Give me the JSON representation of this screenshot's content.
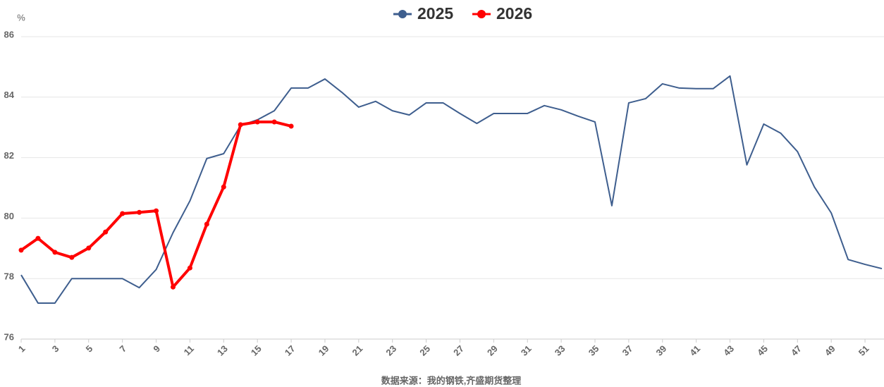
{
  "chart_data": {
    "type": "line",
    "unit": "%",
    "source": "数据来源：我的钢铁,齐盛期货整理",
    "x": [
      1,
      2,
      3,
      4,
      5,
      6,
      7,
      8,
      9,
      10,
      11,
      12,
      13,
      14,
      15,
      16,
      17,
      18,
      19,
      20,
      21,
      22,
      23,
      24,
      25,
      26,
      27,
      28,
      29,
      30,
      31,
      32,
      33,
      34,
      35,
      36,
      37,
      38,
      39,
      40,
      41,
      42,
      43,
      44,
      45,
      46,
      47,
      48,
      49,
      50,
      51,
      52
    ],
    "xlim": [
      1,
      52
    ],
    "xticks": [
      1,
      3,
      5,
      7,
      9,
      11,
      13,
      15,
      17,
      19,
      21,
      23,
      25,
      27,
      29,
      31,
      33,
      35,
      37,
      39,
      41,
      43,
      45,
      47,
      49,
      51
    ],
    "ylim": [
      76,
      86
    ],
    "yticks": [
      76,
      78,
      80,
      82,
      84,
      86
    ],
    "grid": true,
    "legend": "top",
    "series": [
      {
        "name": "2025",
        "color": "#3e5e8e",
        "values": [
          78.12,
          77.19,
          77.19,
          78.0,
          78.0,
          78.0,
          78.0,
          77.7,
          78.3,
          79.52,
          80.57,
          81.97,
          82.13,
          83.06,
          83.25,
          83.55,
          84.3,
          84.3,
          84.6,
          84.16,
          83.67,
          83.86,
          83.55,
          83.41,
          83.81,
          83.81,
          83.46,
          83.13,
          83.46,
          83.46,
          83.46,
          83.72,
          83.58,
          83.37,
          83.18,
          80.41,
          83.81,
          83.95,
          84.44,
          84.3,
          84.28,
          84.28,
          84.7,
          81.76,
          83.11,
          82.81,
          82.2,
          81.03,
          80.17,
          78.63,
          78.47,
          78.33
        ]
      },
      {
        "name": "2026",
        "color": "#ff0000",
        "values": [
          78.94,
          79.33,
          78.87,
          78.7,
          79.01,
          79.54,
          80.15,
          80.19,
          80.24,
          77.72,
          78.35,
          79.8,
          81.03,
          83.09,
          83.18,
          83.18,
          83.04,
          null,
          null,
          null,
          null,
          null,
          null,
          null,
          null,
          null,
          null,
          null,
          null,
          null,
          null,
          null,
          null,
          null,
          null,
          null,
          null,
          null,
          null,
          null,
          null,
          null,
          null,
          null,
          null,
          null,
          null,
          null,
          null,
          null,
          null,
          null
        ]
      }
    ]
  }
}
